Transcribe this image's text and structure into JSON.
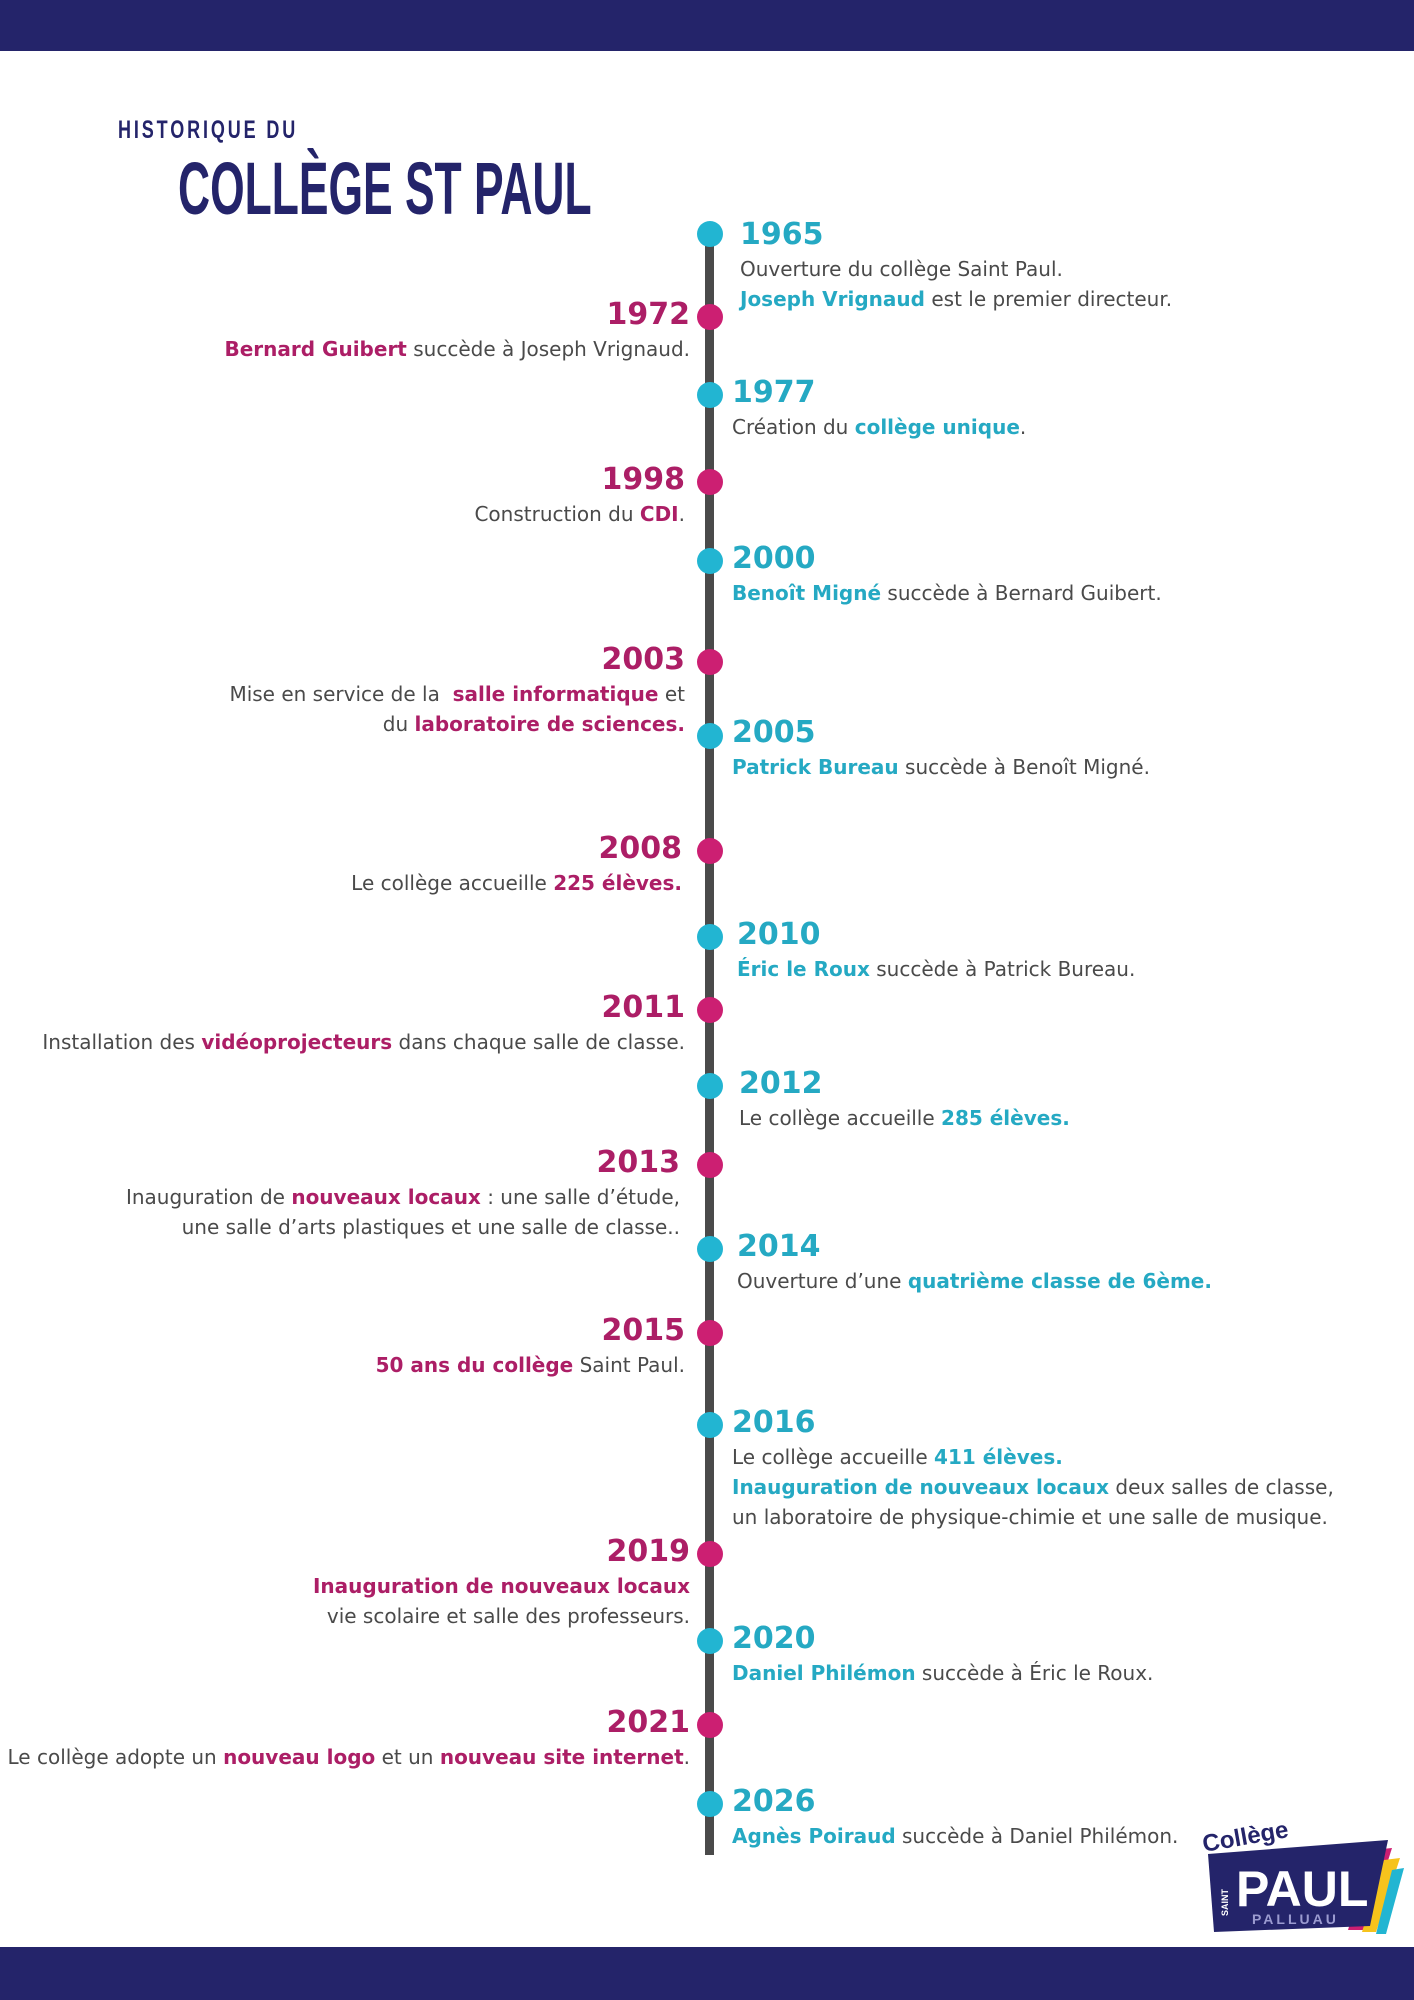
{
  "header": {
    "title_pre": "HISTORIQUE DU",
    "title_main": "COLLÈGE ST PAUL"
  },
  "events": [
    {
      "year": "1965",
      "side": "right",
      "lines": [
        [
          {
            "t": "Ouverture du collège Saint Paul."
          }
        ],
        [
          {
            "t": "Joseph Vrignaud",
            "b": true
          },
          {
            "t": " est le premier directeur."
          }
        ]
      ]
    },
    {
      "year": "1972",
      "side": "left",
      "lines": [
        [
          {
            "t": "Bernard Guibert",
            "b": true
          },
          {
            "t": " succède à Joseph Vrignaud."
          }
        ]
      ]
    },
    {
      "year": "1977",
      "side": "right",
      "lines": [
        [
          {
            "t": "Création du "
          },
          {
            "t": "collège unique",
            "b": true
          },
          {
            "t": "."
          }
        ]
      ]
    },
    {
      "year": "1998",
      "side": "left",
      "lines": [
        [
          {
            "t": "Construction du "
          },
          {
            "t": "CDI",
            "b": true
          },
          {
            "t": "."
          }
        ]
      ]
    },
    {
      "year": "2000",
      "side": "right",
      "lines": [
        [
          {
            "t": "Benoît Migné",
            "b": true
          },
          {
            "t": " succède à Bernard Guibert."
          }
        ]
      ]
    },
    {
      "year": "2003",
      "side": "left",
      "lines": [
        [
          {
            "t": "Mise en service de la  "
          },
          {
            "t": "salle informatique",
            "b": true
          },
          {
            "t": " et"
          }
        ],
        [
          {
            "t": "du "
          },
          {
            "t": "laboratoire de sciences.",
            "b": true
          }
        ]
      ]
    },
    {
      "year": "2005",
      "side": "right",
      "lines": [
        [
          {
            "t": "Patrick Bureau",
            "b": true
          },
          {
            "t": " succède à Benoît Migné."
          }
        ]
      ]
    },
    {
      "year": "2008",
      "side": "left",
      "lines": [
        [
          {
            "t": "Le collège accueille "
          },
          {
            "t": "225 élèves.",
            "b": true
          }
        ]
      ]
    },
    {
      "year": "2010",
      "side": "right",
      "lines": [
        [
          {
            "t": "Éric le Roux",
            "b": true
          },
          {
            "t": " succède à Patrick Bureau."
          }
        ]
      ]
    },
    {
      "year": "2011",
      "side": "left",
      "lines": [
        [
          {
            "t": "Installation des "
          },
          {
            "t": "vidéoprojecteurs",
            "b": true
          },
          {
            "t": " dans chaque salle de classe."
          }
        ]
      ]
    },
    {
      "year": "2012",
      "side": "right",
      "lines": [
        [
          {
            "t": "Le collège accueille "
          },
          {
            "t": "285 élèves.",
            "b": true
          }
        ]
      ]
    },
    {
      "year": "2013",
      "side": "left",
      "lines": [
        [
          {
            "t": "Inauguration de "
          },
          {
            "t": "nouveaux locaux",
            "b": true
          },
          {
            "t": " : une salle d’étude,"
          }
        ],
        [
          {
            "t": "une salle d’arts plastiques et une salle de classe.."
          }
        ]
      ]
    },
    {
      "year": "2014",
      "side": "right",
      "lines": [
        [
          {
            "t": "Ouverture d’une "
          },
          {
            "t": "quatrième classe de 6ème.",
            "b": true
          }
        ]
      ]
    },
    {
      "year": "2015",
      "side": "left",
      "lines": [
        [
          {
            "t": "50 ans du collège",
            "b": true
          },
          {
            "t": " Saint Paul."
          }
        ]
      ]
    },
    {
      "year": "2016",
      "side": "right",
      "lines": [
        [
          {
            "t": "Le collège accueille "
          },
          {
            "t": "411 élèves.",
            "b": true
          }
        ],
        [
          {
            "t": "Inauguration de nouveaux locaux",
            "b": true
          },
          {
            "t": " deux salles de classe,"
          }
        ],
        [
          {
            "t": "un laboratoire de physique-chimie et une salle de musique."
          }
        ]
      ]
    },
    {
      "year": "2019",
      "side": "left",
      "lines": [
        [
          {
            "t": "Inauguration de nouveaux locaux",
            "b": true
          }
        ],
        [
          {
            "t": "vie scolaire et salle des professeurs."
          }
        ]
      ]
    },
    {
      "year": "2020",
      "side": "right",
      "lines": [
        [
          {
            "t": "Daniel Philémon",
            "b": true
          },
          {
            "t": " succède à Éric le Roux."
          }
        ]
      ]
    },
    {
      "year": "2021",
      "side": "left",
      "lines": [
        [
          {
            "t": "Le collège adopte un "
          },
          {
            "t": "nouveau logo",
            "b": true
          },
          {
            "t": " et un "
          },
          {
            "t": "nouveau site internet",
            "b": true
          },
          {
            "t": "."
          }
        ]
      ]
    },
    {
      "year": "2026",
      "side": "right",
      "lines": [
        [
          {
            "t": "Agnès Poiraud",
            "b": true
          },
          {
            "t": " succède à Daniel Philémon."
          }
        ]
      ]
    }
  ],
  "logo": {
    "top_text": "Collège",
    "side_text": "SAINT",
    "main_text": "PAUL",
    "bottom_text": "PALLUAU"
  },
  "colors": {
    "navy": "#24246a",
    "teal": "#22b5d2",
    "pink": "#cc1f72",
    "line": "#4a4a4a"
  }
}
